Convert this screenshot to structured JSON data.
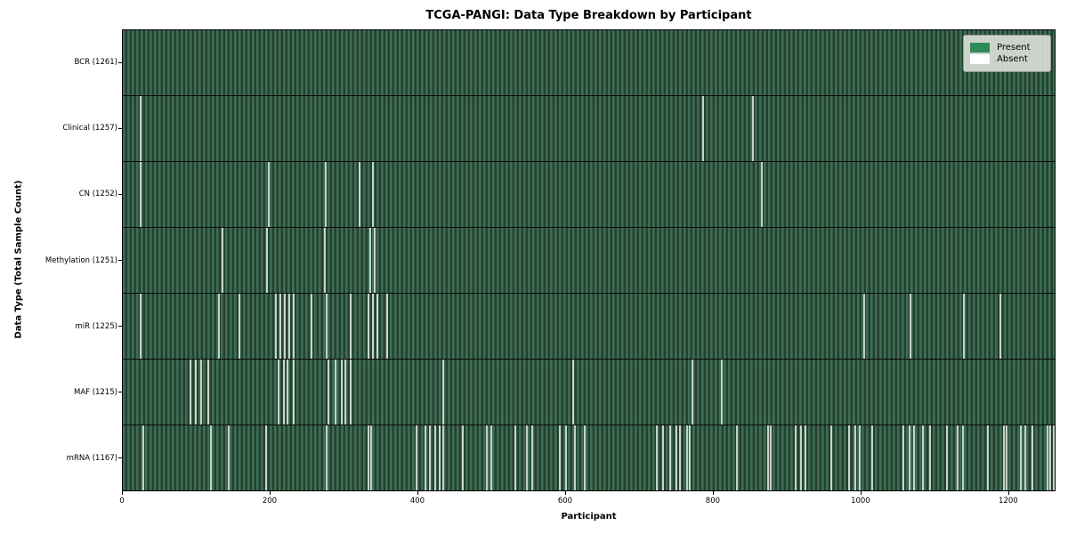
{
  "chart_data": {
    "type": "heatmap",
    "title": "TCGA-PANGI: Data Type Breakdown by Participant",
    "xlabel": "Participant",
    "ylabel": "Data Type (Total Sample Count)",
    "xlim": [
      0,
      1264
    ],
    "x_ticks": [
      0,
      200,
      400,
      600,
      800,
      1000,
      1200
    ],
    "grid": false,
    "legend_position": "upper right",
    "legend": [
      {
        "label": "Present",
        "color": "#2e8b57"
      },
      {
        "label": "Absent",
        "color": "#ffffff"
      }
    ],
    "colors": {
      "present": "#2e8b57",
      "absent": "#ffffff",
      "bar_edge": "#1c3326",
      "row_texture_light": "#3e6e55",
      "row_texture_dark": "#24402e",
      "absent_stripe": "#dde3dd",
      "legend_background": "#d8ded8"
    },
    "rows": [
      {
        "label": "BCR (1261)",
        "data_type": "BCR",
        "total_sample_count": 1261,
        "absent_participants": []
      },
      {
        "label": "Clinical (1257)",
        "data_type": "Clinical",
        "total_sample_count": 1257,
        "absent_participants": [
          23,
          786,
          853
        ]
      },
      {
        "label": "CN (1252)",
        "data_type": "CN",
        "total_sample_count": 1252,
        "absent_participants": [
          23,
          197,
          274,
          320,
          338,
          866
        ]
      },
      {
        "label": "Methylation (1251)",
        "data_type": "Methylation",
        "total_sample_count": 1251,
        "absent_participants": [
          134,
          194,
          273,
          334,
          341
        ]
      },
      {
        "label": "miR (1225)",
        "data_type": "miR",
        "total_sample_count": 1225,
        "absent_participants": [
          23,
          129,
          157,
          206,
          212,
          218,
          224,
          230,
          255,
          275,
          308,
          332,
          338,
          344,
          357,
          1004,
          1067,
          1140,
          1189
        ]
      },
      {
        "label": "MAF (1215)",
        "data_type": "MAF",
        "total_sample_count": 1215,
        "absent_participants": [
          91,
          98,
          105,
          115,
          210,
          217,
          222,
          231,
          278,
          287,
          296,
          301,
          308,
          434,
          610,
          772,
          811
        ]
      },
      {
        "label": "mRNA (1167)",
        "data_type": "mRNA",
        "total_sample_count": 1167,
        "absent_participants": [
          27,
          118,
          142,
          193,
          275,
          332,
          336,
          397,
          409,
          415,
          422,
          428,
          434,
          460,
          493,
          499,
          531,
          547,
          554,
          592,
          600,
          612,
          625,
          723,
          732,
          741,
          750,
          754,
          764,
          768,
          832,
          874,
          878,
          911,
          919,
          925,
          960,
          984,
          992,
          999,
          1015,
          1058,
          1066,
          1072,
          1084,
          1094,
          1117,
          1131,
          1139,
          1172,
          1194,
          1198,
          1217,
          1223,
          1233,
          1253,
          1257,
          1261
        ]
      }
    ]
  }
}
